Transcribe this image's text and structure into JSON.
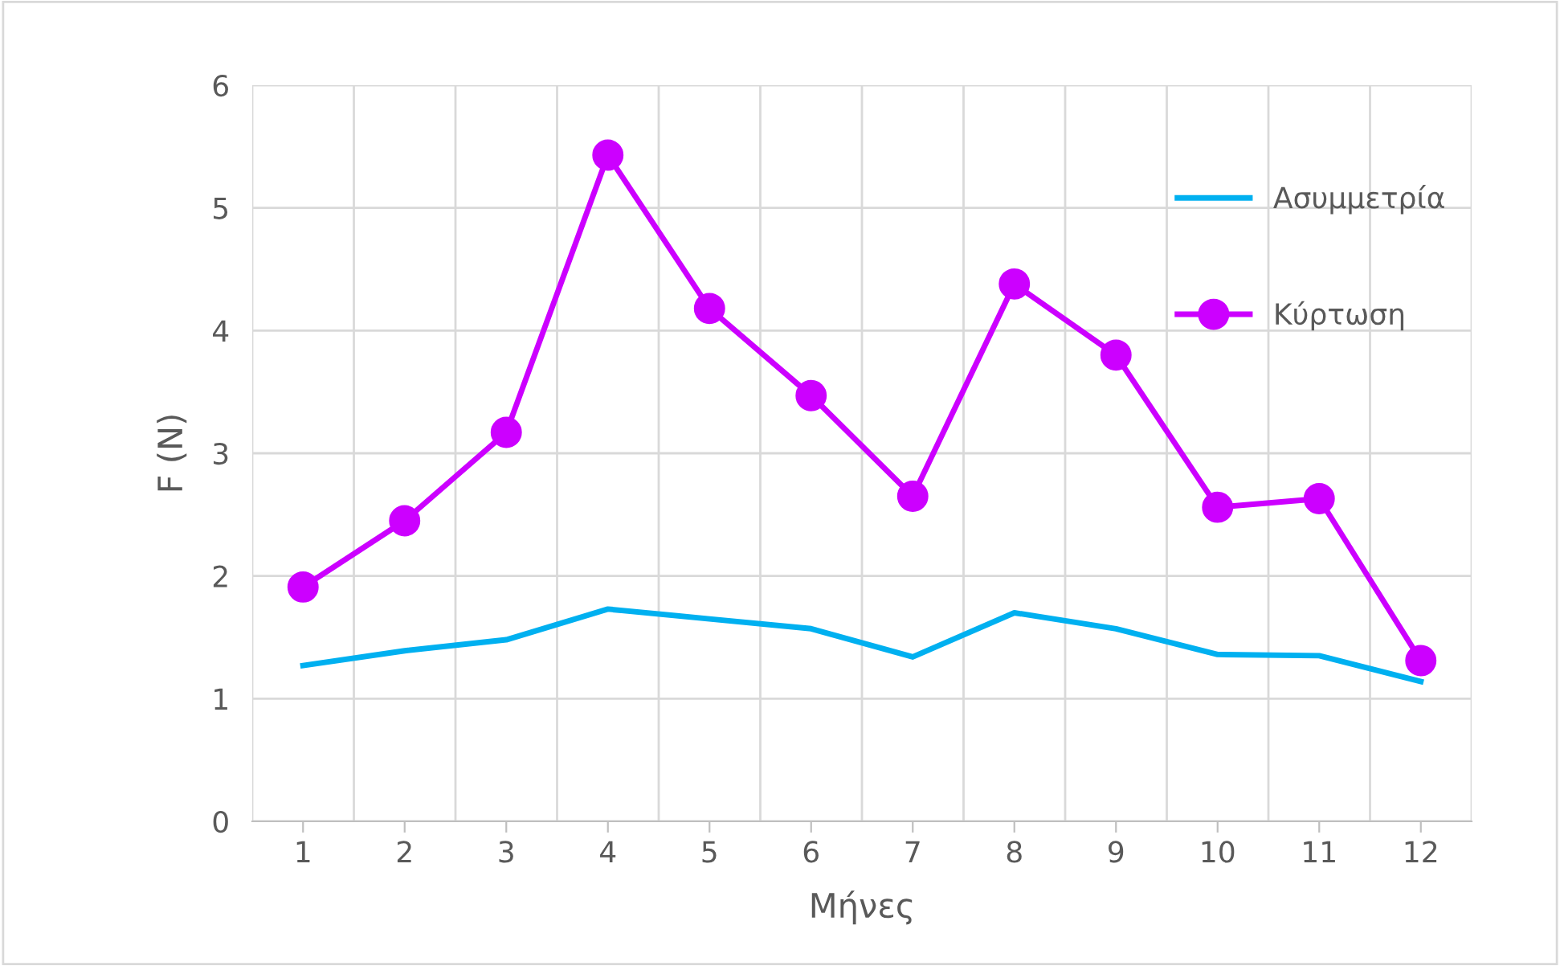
{
  "chart_data": {
    "type": "line",
    "xlabel": "Μήνες",
    "ylabel": "F (N)",
    "categories": [
      "1",
      "2",
      "3",
      "4",
      "5",
      "6",
      "7",
      "8",
      "9",
      "10",
      "11",
      "12"
    ],
    "series": [
      {
        "name": "Ασυμμετρία",
        "color": "#00b0f0",
        "marker": "none",
        "values": [
          1.27,
          1.39,
          1.48,
          1.73,
          1.65,
          1.57,
          1.34,
          1.7,
          1.57,
          1.36,
          1.35,
          1.14
        ]
      },
      {
        "name": "Κύρτωση",
        "color": "#cc00ff",
        "marker": "circle",
        "values": [
          1.91,
          2.45,
          3.17,
          5.43,
          4.18,
          3.47,
          2.65,
          4.38,
          3.8,
          2.56,
          2.63,
          1.31
        ]
      }
    ],
    "ylim": [
      0,
      6
    ],
    "yticks": [
      0,
      1,
      2,
      3,
      4,
      5,
      6
    ],
    "grid": true,
    "legend": "top right"
  }
}
